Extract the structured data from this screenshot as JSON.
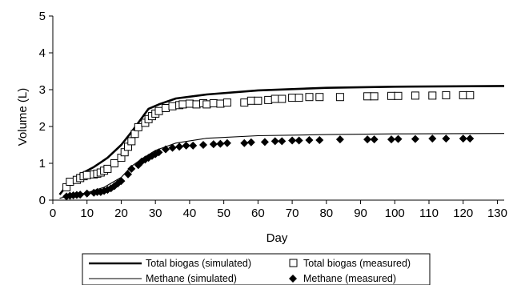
{
  "chart_data": {
    "type": "scatter",
    "title": "",
    "xlabel": "Day",
    "ylabel": "Volume (L)",
    "xlim": [
      0,
      132
    ],
    "ylim": [
      0,
      5
    ],
    "xticks": [
      "0",
      "10",
      "20",
      "30",
      "40",
      "50",
      "60",
      "70",
      "80",
      "90",
      "100",
      "110",
      "120",
      "130"
    ],
    "yticks": [
      "0",
      "1",
      "2",
      "3",
      "4",
      "5"
    ],
    "grid": false,
    "legend_position": "bottom",
    "series": [
      {
        "name": "Total biogas (simulated)",
        "type": "line",
        "color": "#000000",
        "x": [
          2,
          5,
          8,
          12,
          16,
          20,
          23,
          25,
          28,
          31,
          36,
          45,
          60,
          80,
          100,
          132
        ],
        "y": [
          0.15,
          0.5,
          0.7,
          0.9,
          1.15,
          1.5,
          1.85,
          2.1,
          2.48,
          2.6,
          2.76,
          2.87,
          2.98,
          3.05,
          3.08,
          3.1
        ]
      },
      {
        "name": "Methane (simulated)",
        "type": "line",
        "color": "#000000",
        "x": [
          2,
          5,
          10,
          15,
          20,
          23,
          26,
          30,
          36,
          45,
          60,
          80,
          100,
          132
        ],
        "y": [
          0.05,
          0.12,
          0.2,
          0.35,
          0.62,
          0.92,
          1.12,
          1.35,
          1.55,
          1.68,
          1.75,
          1.78,
          1.8,
          1.81
        ]
      },
      {
        "name": "Total biogas (measured)",
        "type": "scatter",
        "marker": "open-square",
        "color": "#000000",
        "x": [
          4,
          5,
          7,
          8,
          9,
          10,
          12,
          13,
          14,
          15,
          16,
          18,
          20,
          21,
          22,
          23,
          24,
          25,
          27,
          28,
          29,
          30,
          31,
          33,
          35,
          37,
          38,
          40,
          42,
          44,
          45,
          47,
          49,
          51,
          56,
          58,
          60,
          63,
          65,
          67,
          70,
          72,
          75,
          78,
          84,
          92,
          94,
          99,
          101,
          106,
          111,
          115,
          120,
          122
        ],
        "y": [
          0.35,
          0.5,
          0.55,
          0.6,
          0.65,
          0.68,
          0.7,
          0.72,
          0.75,
          0.8,
          0.85,
          1.0,
          1.15,
          1.3,
          1.45,
          1.6,
          1.8,
          1.98,
          2.1,
          2.2,
          2.28,
          2.35,
          2.42,
          2.5,
          2.55,
          2.58,
          2.6,
          2.62,
          2.6,
          2.63,
          2.6,
          2.63,
          2.62,
          2.65,
          2.65,
          2.7,
          2.7,
          2.72,
          2.75,
          2.75,
          2.78,
          2.78,
          2.8,
          2.8,
          2.8,
          2.82,
          2.82,
          2.83,
          2.83,
          2.84,
          2.84,
          2.85,
          2.85,
          2.85
        ]
      },
      {
        "name": "Methane (measured)",
        "type": "scatter",
        "marker": "filled-diamond",
        "color": "#000000",
        "x": [
          4,
          5,
          6,
          7,
          8,
          10,
          12,
          13,
          14,
          15,
          16,
          17,
          18,
          19,
          20,
          22,
          23,
          25,
          26,
          27,
          28,
          29,
          30,
          31,
          33,
          35,
          37,
          39,
          41,
          44,
          47,
          49,
          51,
          56,
          58,
          62,
          65,
          67,
          70,
          72,
          75,
          78,
          84,
          92,
          94,
          99,
          101,
          106,
          111,
          115,
          120,
          122
        ],
        "y": [
          0.1,
          0.12,
          0.13,
          0.14,
          0.15,
          0.18,
          0.2,
          0.22,
          0.22,
          0.25,
          0.28,
          0.32,
          0.38,
          0.45,
          0.52,
          0.7,
          0.85,
          0.95,
          1.05,
          1.1,
          1.15,
          1.2,
          1.25,
          1.3,
          1.38,
          1.42,
          1.45,
          1.48,
          1.48,
          1.5,
          1.52,
          1.53,
          1.55,
          1.55,
          1.57,
          1.58,
          1.6,
          1.6,
          1.62,
          1.62,
          1.63,
          1.63,
          1.65,
          1.65,
          1.65,
          1.65,
          1.66,
          1.66,
          1.67,
          1.67,
          1.67,
          1.67
        ]
      }
    ]
  }
}
